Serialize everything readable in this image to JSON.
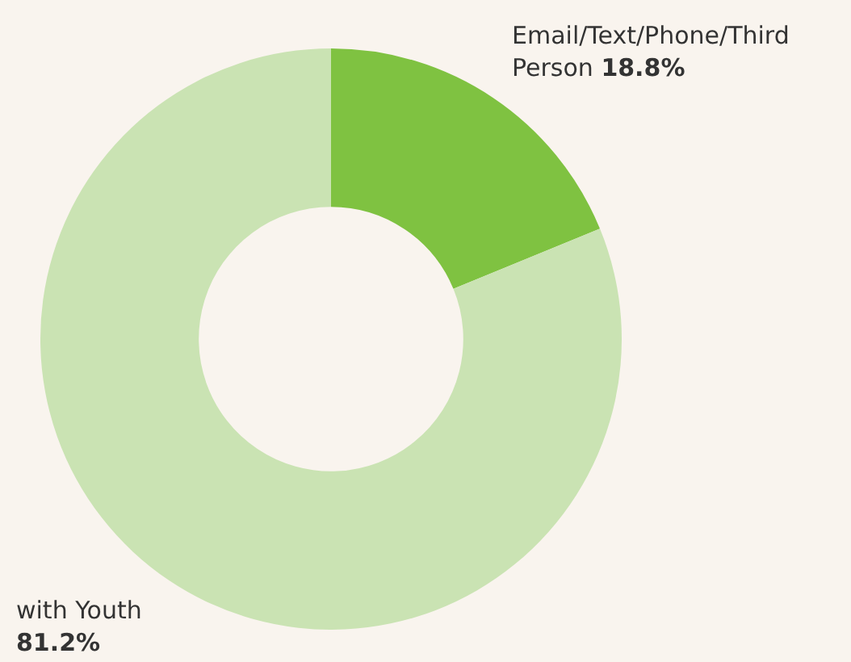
{
  "chart_data": {
    "type": "donut",
    "categories": [
      "Email/Text/Phone/Third Person",
      "with Youth"
    ],
    "values": [
      18.8,
      81.2
    ],
    "colors": [
      "#7fc241",
      "#cae3b3"
    ],
    "value_labels": [
      "18.8%",
      "81.2%"
    ],
    "legend": false
  }
}
